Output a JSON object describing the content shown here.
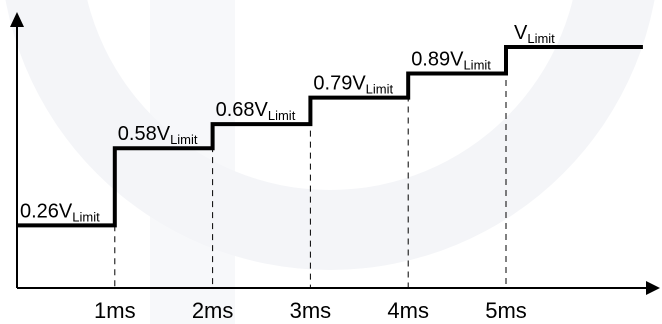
{
  "chart_data": {
    "type": "line",
    "title": "",
    "xlabel": "",
    "ylabel": "",
    "x_unit": "ms",
    "y_unit": "V_Limit",
    "steps": [
      {
        "x_start": 0,
        "x_end": 1,
        "value": 0.26,
        "coef": "0.26",
        "sub": "Limit"
      },
      {
        "x_start": 1,
        "x_end": 2,
        "value": 0.58,
        "coef": "0.58",
        "sub": "Limit"
      },
      {
        "x_start": 2,
        "x_end": 3,
        "value": 0.68,
        "coef": "0.68",
        "sub": "Limit"
      },
      {
        "x_start": 3,
        "x_end": 4,
        "value": 0.79,
        "coef": "0.79",
        "sub": "Limit"
      },
      {
        "x_start": 4,
        "x_end": 5,
        "value": 0.89,
        "coef": "0.89",
        "sub": "Limit"
      },
      {
        "x_start": 5,
        "x_end": 6.4,
        "value": 1.0,
        "coef": "",
        "sub": "Limit"
      }
    ],
    "x_ticks": [
      {
        "value": 1,
        "label": "1ms"
      },
      {
        "value": 2,
        "label": "2ms"
      },
      {
        "value": 3,
        "label": "3ms"
      },
      {
        "value": 4,
        "label": "4ms"
      },
      {
        "value": 5,
        "label": "5ms"
      }
    ],
    "symbol_main": "V",
    "xlim": [
      0,
      6.5
    ],
    "ylim": [
      0,
      1.18
    ],
    "grid": false,
    "legend": "none",
    "colors": {
      "line": "#000000",
      "watermark": "#f3f4f7"
    }
  }
}
